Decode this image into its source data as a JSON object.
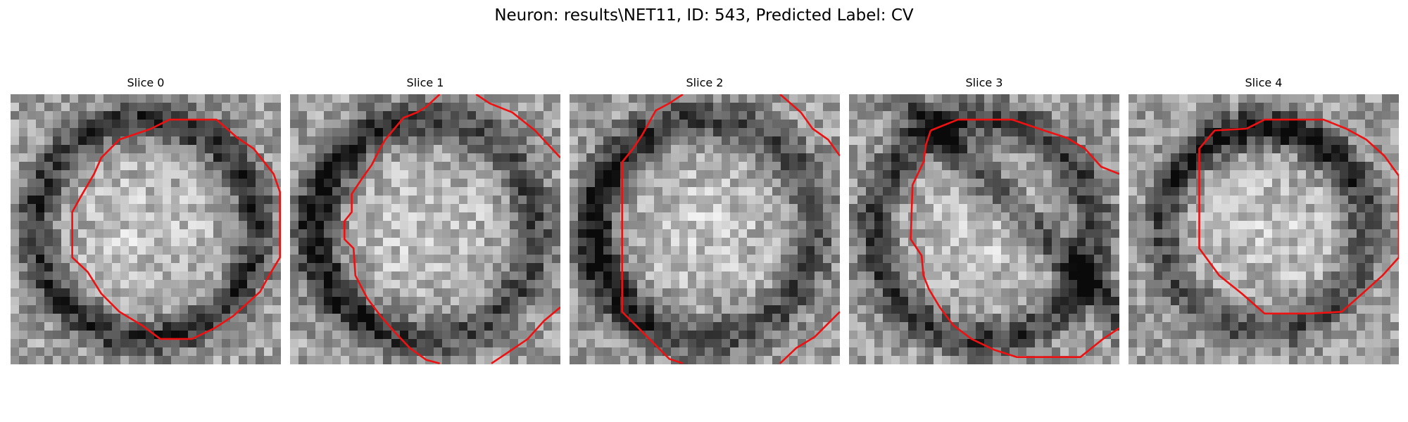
{
  "figure": {
    "title": "Neuron: results\\NET11, ID: 543, Predicted Label: CV"
  },
  "colors": {
    "contour": "#ee1111",
    "background": "#ffffff"
  },
  "panels": [
    {
      "title": "Slice 0",
      "seed": 11,
      "ring": "full",
      "contour": "slice0"
    },
    {
      "title": "Slice 1",
      "seed": 27,
      "ring": "left",
      "contour": "slice1"
    },
    {
      "title": "Slice 2",
      "seed": 43,
      "ring": "left",
      "contour": "slice2"
    },
    {
      "title": "Slice 3",
      "seed": 59,
      "ring": "diag",
      "contour": "slice3"
    },
    {
      "title": "Slice 4",
      "seed": 71,
      "ring": "top",
      "contour": "slice4"
    }
  ]
}
